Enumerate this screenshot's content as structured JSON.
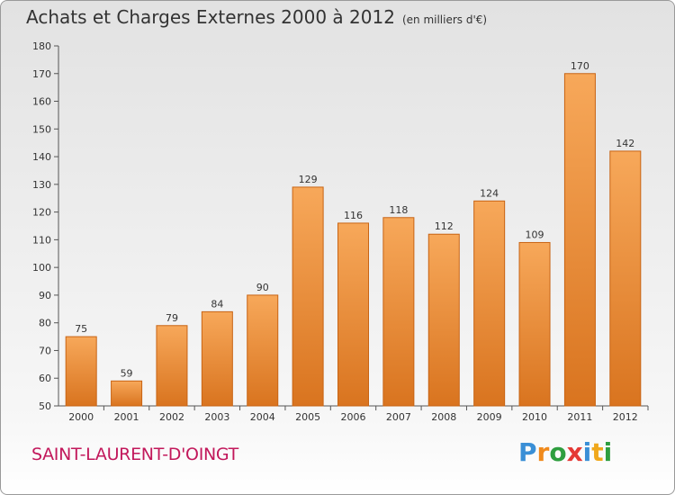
{
  "title": "Achats et Charges Externes 2000 à 2012",
  "subtitle": "(en milliers d'€)",
  "commune": "SAINT-LAURENT-D'OINGT",
  "brand": {
    "letters": [
      "P",
      "r",
      "o",
      "x",
      "i",
      "t",
      "i"
    ],
    "colors": [
      "#3a8fd6",
      "#f08a1c",
      "#2e9e3f",
      "#e53935",
      "#3a8fd6",
      "#f0a81c",
      "#2e9e3f"
    ]
  },
  "colors": {
    "bar_light": "#f7a85a",
    "bar_dark": "#d9741f",
    "axis": "#555555",
    "grid": "#cccccc"
  },
  "chart_data": {
    "type": "bar",
    "categories": [
      "2000",
      "2001",
      "2002",
      "2003",
      "2004",
      "2005",
      "2006",
      "2007",
      "2008",
      "2009",
      "2010",
      "2011",
      "2012"
    ],
    "values": [
      75,
      59,
      79,
      84,
      90,
      129,
      116,
      118,
      112,
      124,
      109,
      170,
      142
    ],
    "ylim": [
      50,
      180
    ],
    "yticks": [
      50,
      60,
      70,
      80,
      90,
      100,
      110,
      120,
      130,
      140,
      150,
      160,
      170,
      180
    ],
    "grid": false,
    "legend": "none"
  }
}
